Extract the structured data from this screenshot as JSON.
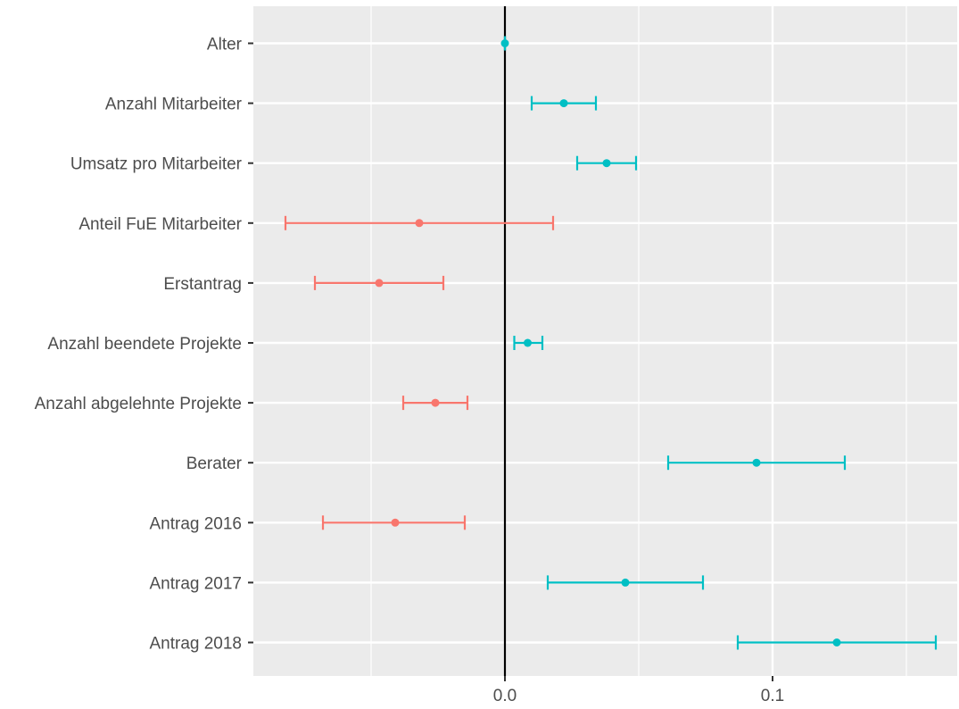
{
  "chart_data": {
    "type": "errorbar",
    "xlim": [
      -0.094,
      0.169
    ],
    "x_ticks": [
      {
        "value": 0.0,
        "label": "0.0"
      },
      {
        "value": 0.1,
        "label": "0.1"
      }
    ],
    "x_minor_gridlines": [
      -0.05,
      0.05,
      0.15
    ],
    "reference_line": 0,
    "grid": true,
    "legend": "none",
    "colors": {
      "positive": "#00BFC4",
      "negative": "#F8766D",
      "panel": "#EBEBEB",
      "grid": "#FFFFFF",
      "reference": "#000000",
      "text": "#4D4D4D"
    },
    "categories": [
      "Alter",
      "Anzahl Mitarbeiter",
      "Umsatz pro Mitarbeiter",
      "Anteil FuE Mitarbeiter",
      "Erstantrag",
      "Anzahl beendete Projekte",
      "Anzahl abgelehnte Projekte",
      "Berater",
      "Antrag 2016",
      "Antrag 2017",
      "Antrag 2018"
    ],
    "estimates": [
      0.0,
      0.022,
      0.038,
      -0.032,
      -0.047,
      0.0085,
      -0.026,
      0.094,
      -0.041,
      0.045,
      0.124
    ],
    "lower": [
      0.0,
      0.01,
      0.027,
      -0.082,
      -0.071,
      0.0035,
      -0.038,
      0.061,
      -0.068,
      0.016,
      0.087
    ],
    "upper": [
      0.0,
      0.034,
      0.049,
      0.018,
      -0.023,
      0.014,
      -0.014,
      0.127,
      -0.015,
      0.074,
      0.161
    ]
  }
}
